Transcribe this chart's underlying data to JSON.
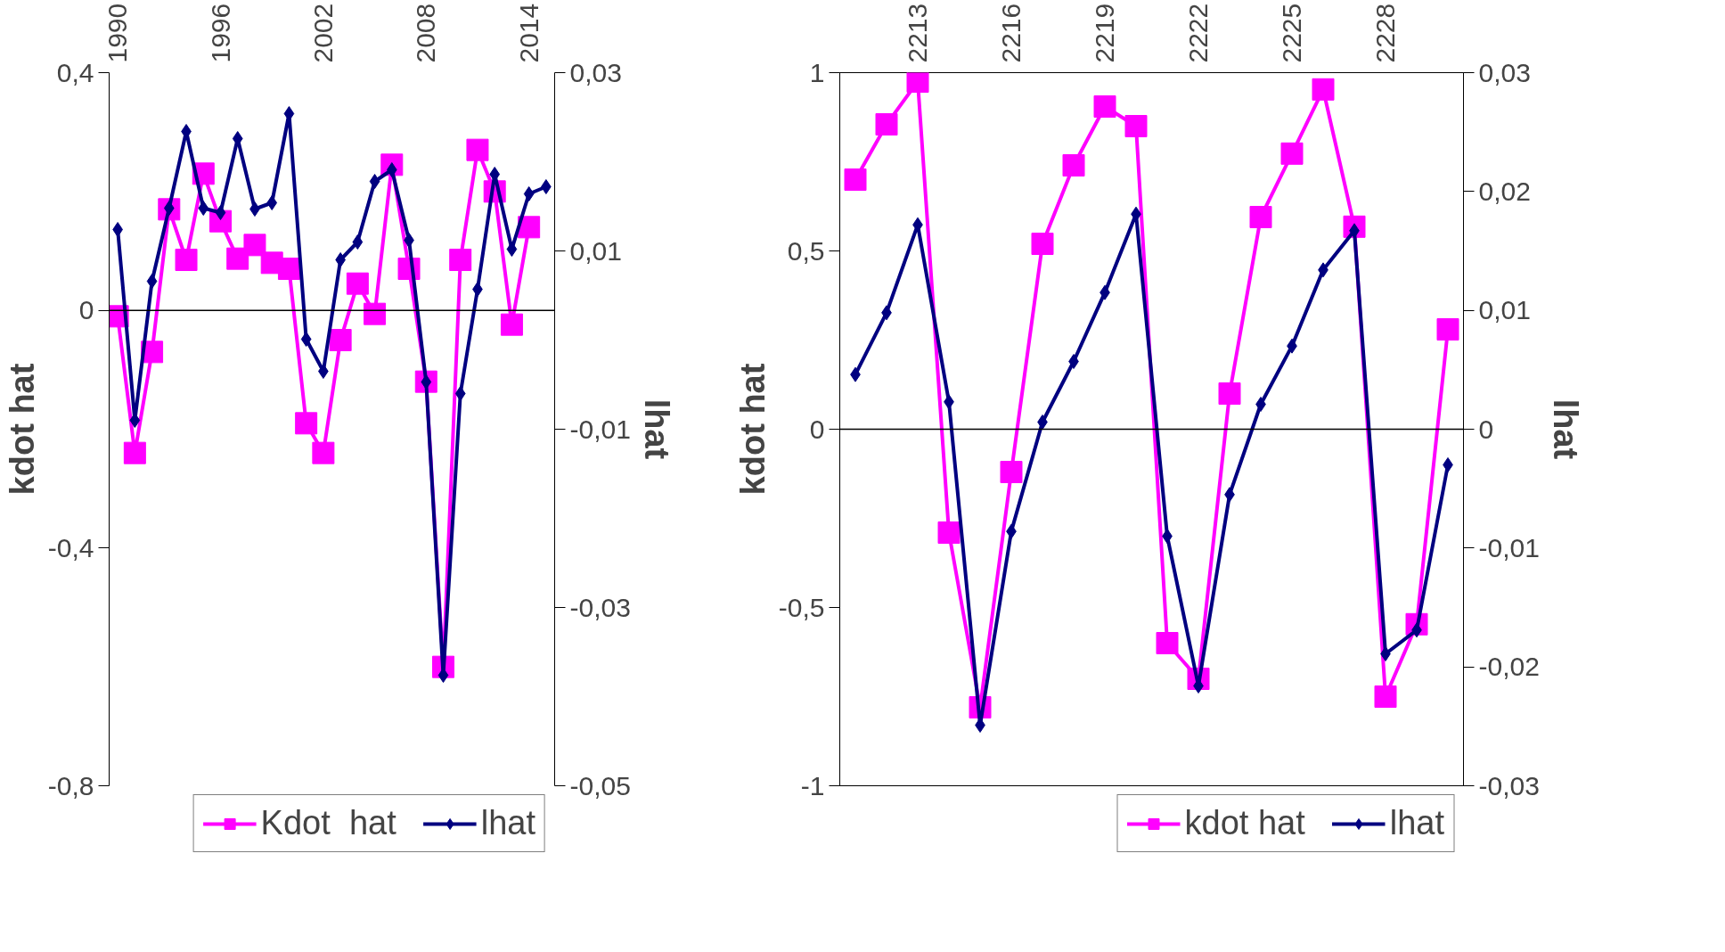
{
  "chart_data": [
    {
      "type": "line",
      "xlabel": null,
      "ylabel": "kdot hat",
      "y2label": "lhat",
      "categories": [
        "1990",
        null,
        null,
        null,
        null,
        null,
        "1996",
        null,
        null,
        null,
        null,
        null,
        "2002",
        null,
        null,
        null,
        null,
        null,
        "2008",
        null,
        null,
        null,
        null,
        null,
        "2014",
        null
      ],
      "series": [
        {
          "name": "Kdot  hat",
          "color": "#ff00ff",
          "marker": "square",
          "values": [
            -0.01,
            -0.24,
            -0.07,
            0.17,
            0.085,
            0.23,
            0.15,
            0.087,
            0.11,
            0.08,
            0.07,
            -0.19,
            -0.24,
            -0.05,
            0.045,
            -0.006,
            0.245,
            0.07,
            -0.12,
            -0.6,
            0.085,
            0.27,
            0.2,
            -0.024,
            0.14,
            null
          ]
        },
        {
          "name": "lhat",
          "color": "#000080",
          "marker": "diamond",
          "axis": "y2",
          "values": [
            0.0124,
            -0.009,
            0.0066,
            0.0148,
            0.0234,
            0.0148,
            0.0143,
            0.0226,
            0.0147,
            0.0154,
            0.0254,
            0.0001,
            -0.0035,
            0.009,
            0.011,
            0.0178,
            0.0191,
            0.0112,
            -0.0047,
            -0.0376,
            -0.006,
            0.0057,
            0.0186,
            0.0102,
            0.0164,
            0.0172
          ]
        }
      ],
      "ylim": [
        -0.8,
        0.4
      ],
      "yticks": [
        {
          "value": 0.4,
          "label": "0,4"
        },
        0,
        {
          "value": -0.4,
          "label": "-0,4"
        },
        {
          "value": -0.8,
          "label": "-0,8"
        }
      ],
      "y2lim": [
        -0.05,
        0.03
      ],
      "y2ticks": [
        {
          "value": 0.03,
          "label": "0,03"
        },
        {
          "value": 0.01,
          "label": "0,01"
        },
        {
          "value": -0.01,
          "label": "-0,01"
        },
        {
          "value": -0.03,
          "label": "-0,03"
        },
        {
          "value": -0.05,
          "label": "-0,05"
        }
      ],
      "ref_lines": [
        {
          "axis": "y",
          "value": 0
        }
      ],
      "grid": false,
      "legend": "bottom",
      "line_style": "solid"
    },
    {
      "type": "line",
      "ylabel": "kdot hat",
      "y2label": "lhat",
      "categories": [
        null,
        null,
        "2213",
        null,
        null,
        "2216",
        null,
        null,
        "2219",
        null,
        null,
        "2222",
        null,
        null,
        "2225",
        null,
        null,
        "2228",
        null,
        null
      ],
      "series": [
        {
          "name": "kdot hat",
          "color": "#ff00ff",
          "marker": "square",
          "values": [
            0.7,
            0.855,
            0.975,
            -0.29,
            -0.78,
            -0.12,
            0.52,
            0.74,
            0.905,
            0.85,
            -0.6,
            -0.7,
            0.1,
            0.595,
            0.773,
            0.953,
            0.568,
            -0.75,
            -0.547,
            0.28
          ]
        },
        {
          "name": "lhat",
          "color": "#000080",
          "marker": "diamond",
          "axis": "y2",
          "values": [
            0.0046,
            0.0098,
            0.0172,
            0.0023,
            -0.0249,
            -0.0086,
            0.0006,
            0.0057,
            0.0115,
            0.0181,
            -0.009,
            -0.0216,
            -0.0055,
            0.0021,
            0.007,
            0.0134,
            0.0167,
            -0.0189,
            -0.0169,
            -0.003
          ]
        }
      ],
      "ylim": [
        -1,
        1
      ],
      "yticks": [
        1,
        {
          "value": 0.5,
          "label": "0,5"
        },
        0,
        {
          "value": -0.5,
          "label": "-0,5"
        },
        -1
      ],
      "y2lim": [
        -0.03,
        0.03
      ],
      "y2ticks": [
        {
          "value": 0.03,
          "label": "0,03"
        },
        {
          "value": 0.02,
          "label": "0,02"
        },
        {
          "value": 0.01,
          "label": "0,01"
        },
        0,
        {
          "value": -0.01,
          "label": "-0,01"
        },
        {
          "value": -0.02,
          "label": "-0,02"
        },
        {
          "value": -0.03,
          "label": "-0,03"
        }
      ],
      "ref_lines": [
        {
          "axis": "y",
          "value": 0
        }
      ],
      "grid": false,
      "legend": "bottom",
      "line_style": "solid"
    }
  ]
}
